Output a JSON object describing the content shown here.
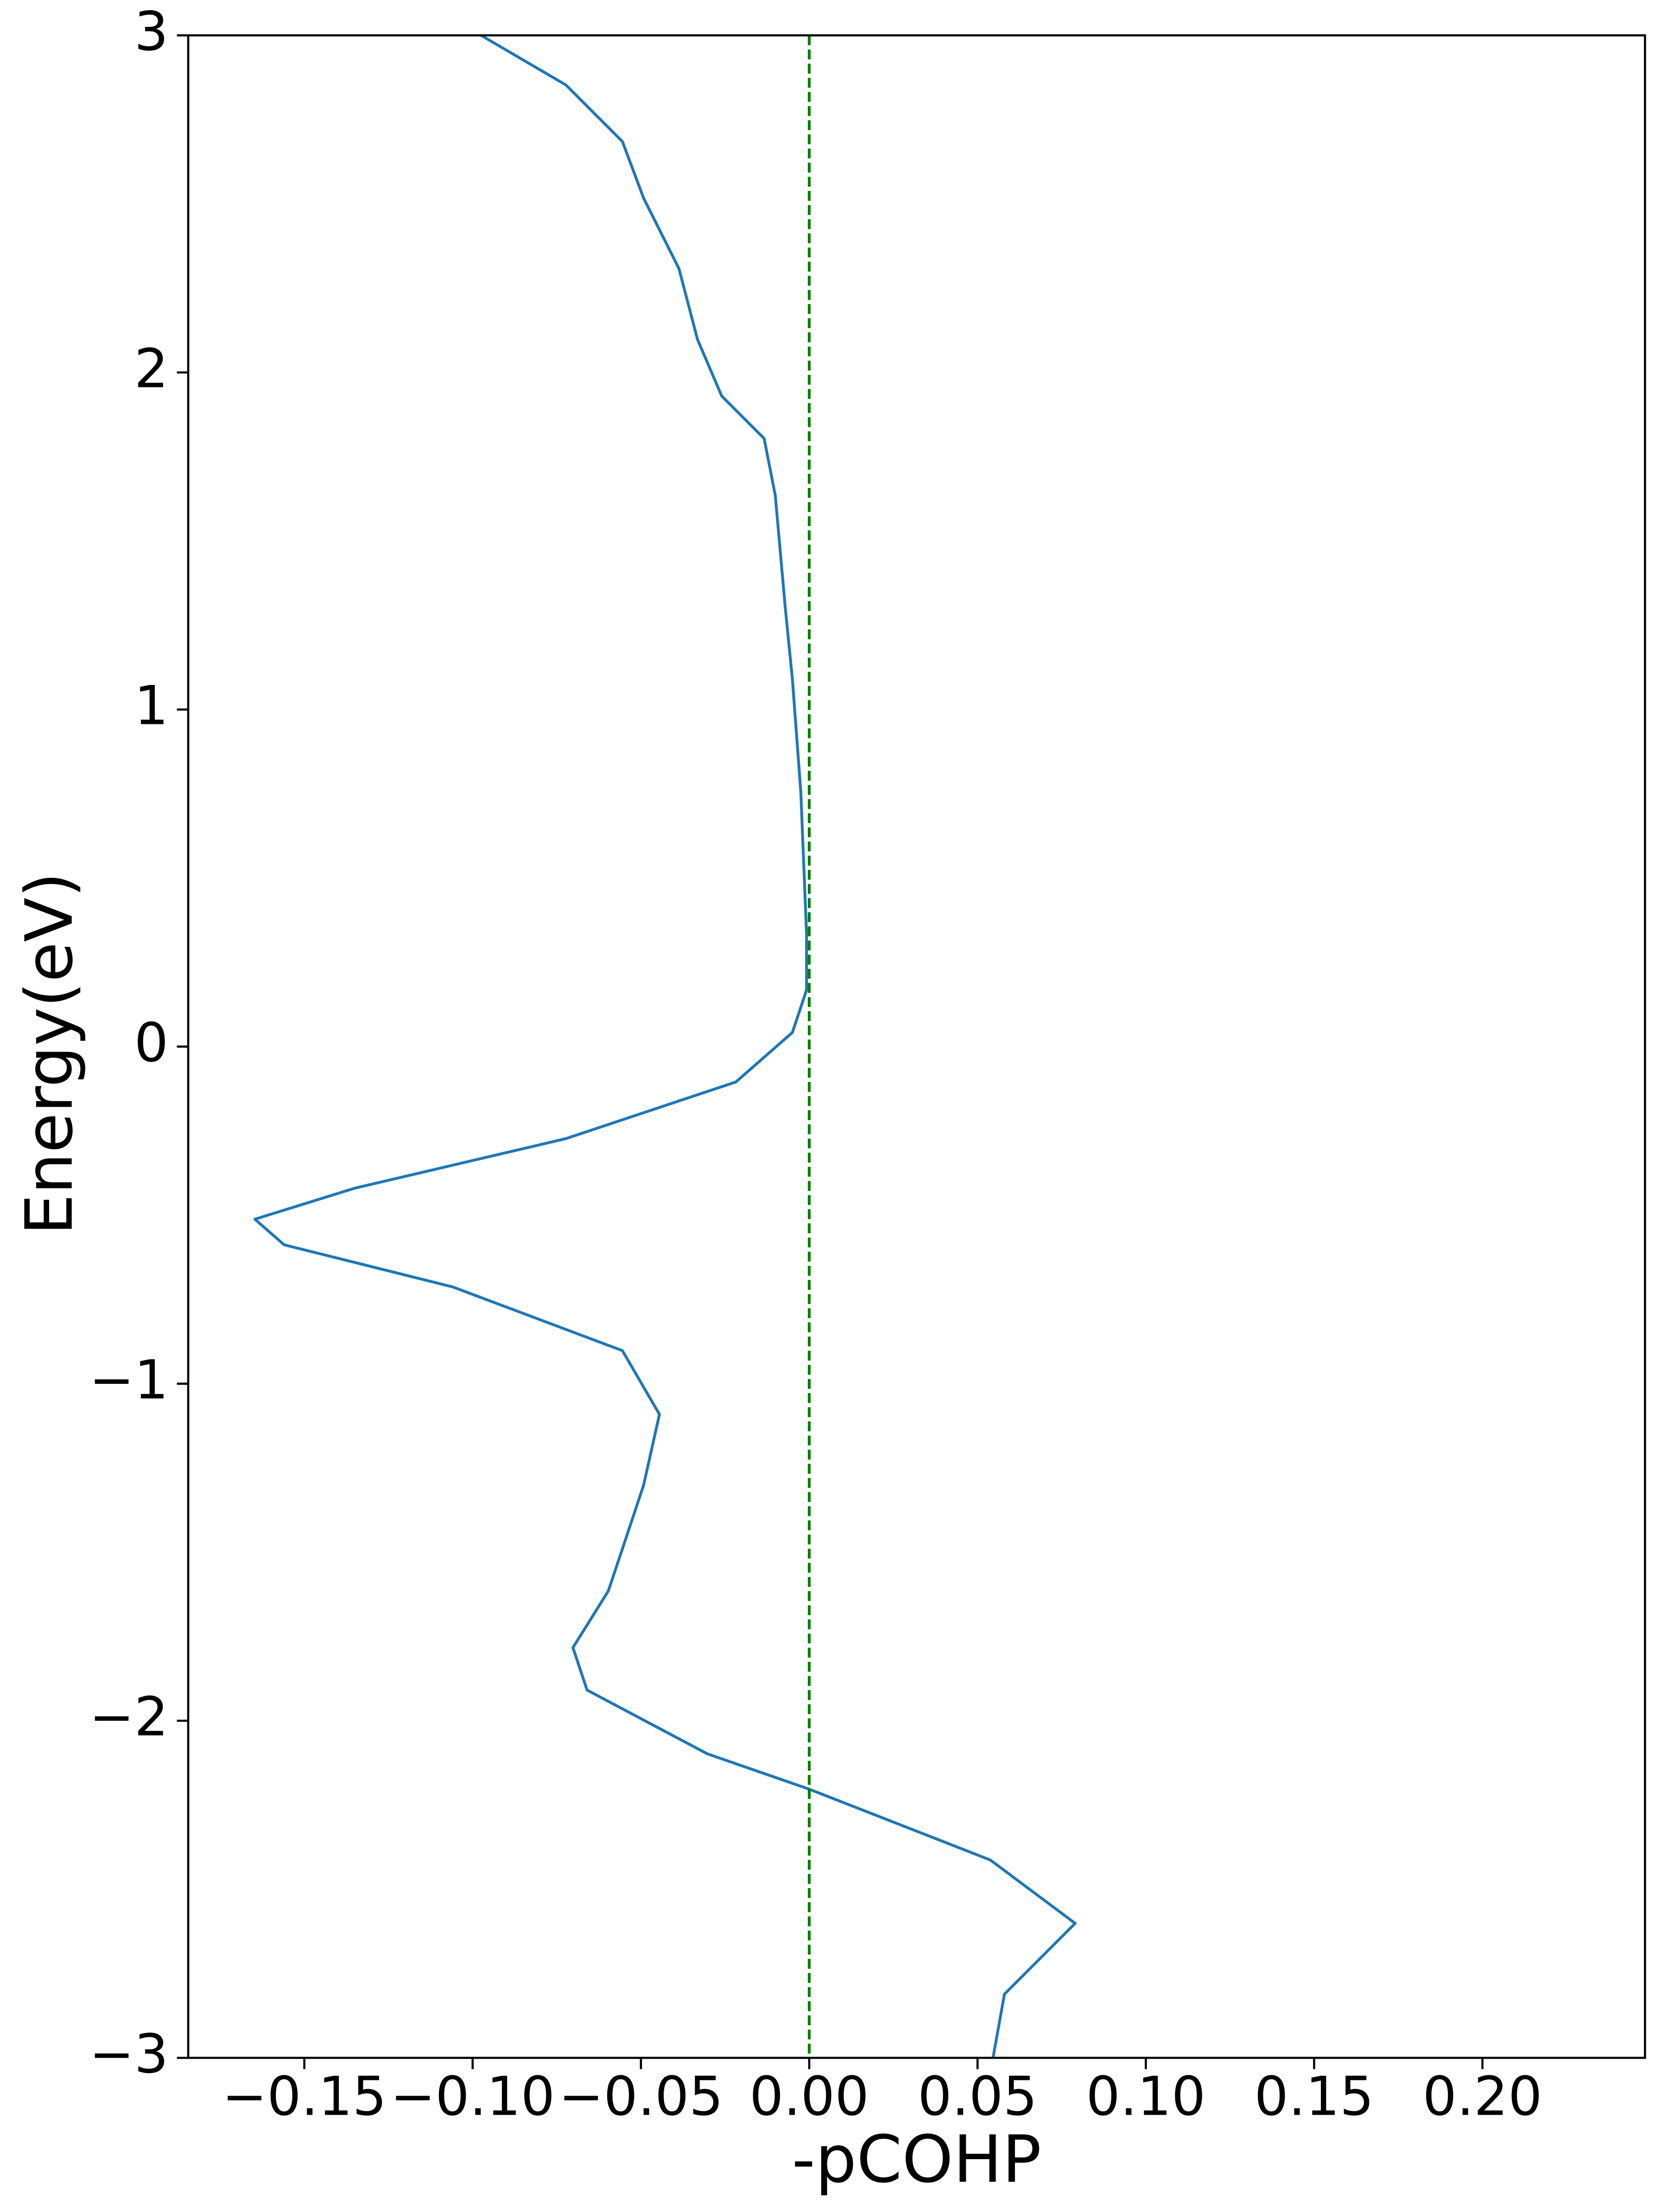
{
  "chart_data": {
    "type": "line",
    "x_label": "-pCOHP",
    "y_label": "Energy(eV)",
    "x": [
      -0.0975,
      -0.0723,
      -0.0555,
      -0.0492,
      -0.0387,
      -0.0332,
      -0.026,
      -0.0134,
      -0.0101,
      -0.0071,
      -0.005,
      -0.0025,
      -0.0008,
      -0.0008,
      -0.005,
      -0.0218,
      -0.0723,
      -0.135,
      -0.1647,
      -0.156,
      -0.1059,
      -0.0555,
      -0.0445,
      -0.0492,
      -0.0555,
      -0.0597,
      -0.0702,
      -0.066,
      -0.0303,
      0,
      0.0538,
      0.079,
      0.0706,
      0.058,
      0.0546
    ],
    "values": [
      3,
      2.853,
      2.685,
      2.517,
      2.308,
      2.098,
      1.93,
      1.804,
      1.636,
      1.3,
      1.09,
      0.755,
      0.336,
      0.168,
      0.042,
      -0.105,
      -0.273,
      -0.42,
      -0.512,
      -0.588,
      -0.713,
      -0.902,
      -1.091,
      -1.301,
      -1.49,
      -1.615,
      -1.783,
      -1.909,
      -2.098,
      -2.203,
      -2.413,
      -2.601,
      -2.685,
      -2.811,
      -3.0
    ],
    "color": "#1f77b4",
    "vline": {
      "value": 0,
      "color": "#008000",
      "style": "dashed"
    },
    "xlim": [
      -0.1845,
      0.2483
    ],
    "ylim": [
      -3,
      3
    ],
    "xticks": [
      {
        "value": -0.15,
        "label": "−0.15"
      },
      {
        "value": -0.1,
        "label": "−0.10"
      },
      {
        "value": -0.05,
        "label": "−0.05"
      },
      {
        "value": 0,
        "label": "0.00"
      },
      0.05,
      {
        "value": 0.1,
        "label": "0.10"
      },
      0.15,
      {
        "value": 0.2,
        "label": "0.20"
      }
    ],
    "yticks": [
      {
        "value": -3,
        "label": "−3"
      },
      {
        "value": -2,
        "label": "−2"
      },
      {
        "value": -1,
        "label": "−1"
      },
      0,
      1,
      2,
      3
    ],
    "grid": false
  }
}
